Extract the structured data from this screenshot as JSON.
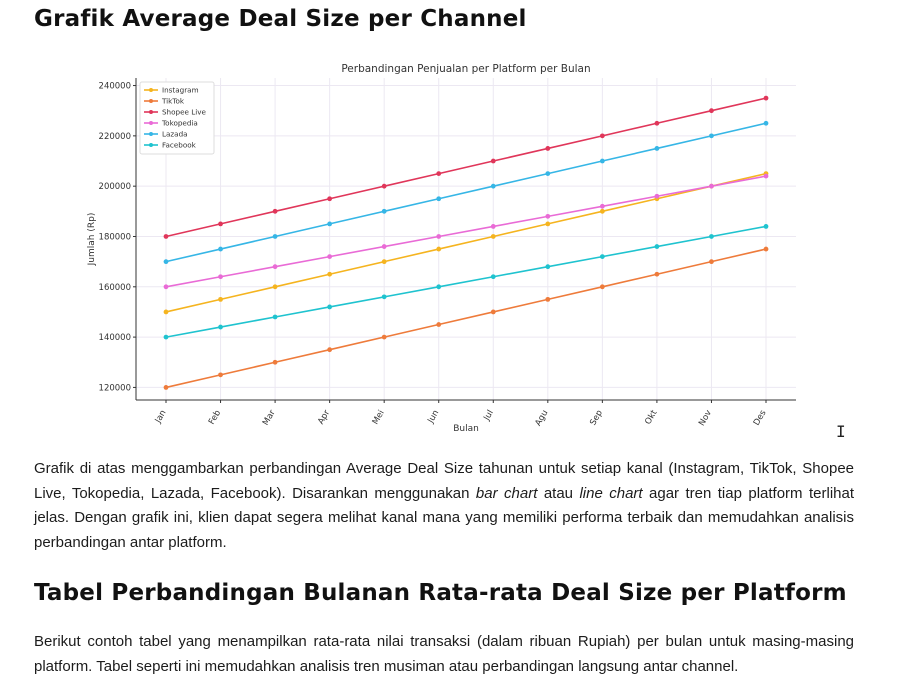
{
  "section1": {
    "title": "Grafik Average Deal Size per Channel",
    "paragraph": {
      "part1": "Grafik di atas menggambarkan perbandingan Average Deal Size tahunan untuk setiap kanal (Instagram, TikTok, Shopee Live, Tokopedia, Lazada, Facebook). Disarankan menggunakan ",
      "em1": "bar chart",
      "part2": " atau ",
      "em2": "line chart",
      "part3": " agar tren tiap platform terlihat jelas. Dengan grafik ini, klien dapat segera melihat kanal mana yang memiliki performa terbaik dan memudahkan analisis perbandingan antar platform."
    }
  },
  "section2": {
    "title": "Tabel Perbandingan Bulanan Rata-rata Deal Size per Platform",
    "paragraph": "Berikut contoh tabel yang menampilkan rata-rata nilai transaksi (dalam ribuan Rupiah) per bulan untuk masing-masing platform. Tabel seperti ini memudahkan analisis tren musiman atau perbandingan langsung antar channel."
  },
  "cursor_glyph": "I",
  "chart_data": {
    "type": "line",
    "title": "Perbandingan Penjualan per Platform per Bulan",
    "xlabel": "Bulan",
    "ylabel": "Jumlah (Rp)",
    "categories": [
      "Jan",
      "Feb",
      "Mar",
      "Apr",
      "Mei",
      "Jun",
      "Jul",
      "Agu",
      "Sep",
      "Okt",
      "Nov",
      "Des"
    ],
    "ylim": [
      115000,
      243000
    ],
    "yticks": [
      120000,
      140000,
      160000,
      180000,
      200000,
      220000,
      240000
    ],
    "grid": true,
    "legend_position": "top-left",
    "series": [
      {
        "name": "Instagram",
        "color": "#f5b41f",
        "values": [
          150000,
          155000,
          160000,
          165000,
          170000,
          175000,
          180000,
          185000,
          190000,
          195000,
          200000,
          205000
        ]
      },
      {
        "name": "TikTok",
        "color": "#ee7b3b",
        "values": [
          120000,
          125000,
          130000,
          135000,
          140000,
          145000,
          150000,
          155000,
          160000,
          165000,
          170000,
          175000
        ]
      },
      {
        "name": "Shopee Live",
        "color": "#e0365a",
        "values": [
          180000,
          185000,
          190000,
          195000,
          200000,
          205000,
          210000,
          215000,
          220000,
          225000,
          230000,
          235000
        ]
      },
      {
        "name": "Tokopedia",
        "color": "#e96bd6",
        "values": [
          160000,
          164000,
          168000,
          172000,
          176000,
          180000,
          184000,
          188000,
          192000,
          196000,
          200000,
          204000
        ]
      },
      {
        "name": "Lazada",
        "color": "#36b6e6",
        "values": [
          170000,
          175000,
          180000,
          185000,
          190000,
          195000,
          200000,
          205000,
          210000,
          215000,
          220000,
          225000
        ]
      },
      {
        "name": "Facebook",
        "color": "#1fc3cf",
        "values": [
          140000,
          144000,
          148000,
          152000,
          156000,
          160000,
          164000,
          168000,
          172000,
          176000,
          180000,
          184000
        ]
      }
    ]
  }
}
